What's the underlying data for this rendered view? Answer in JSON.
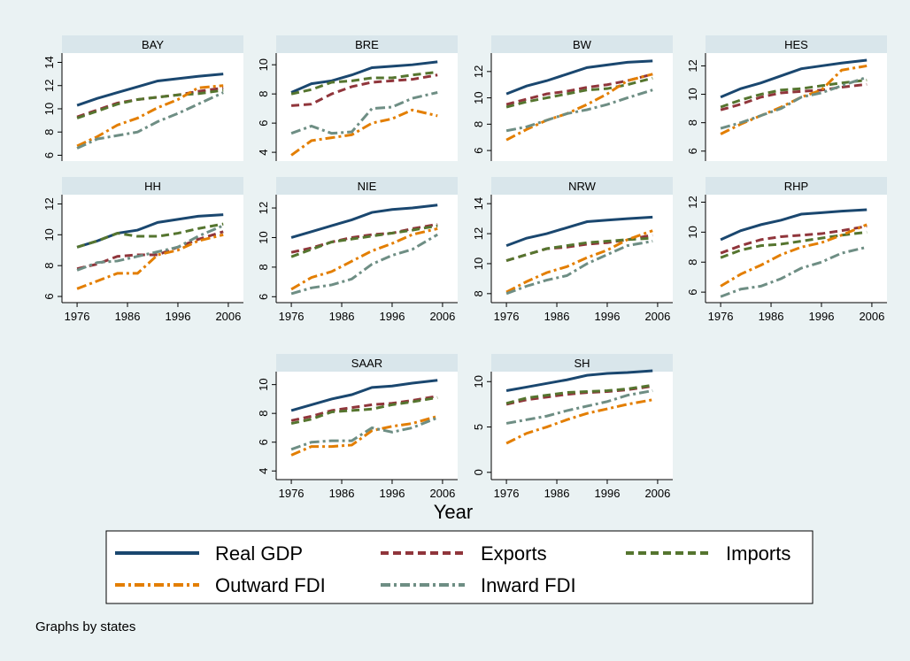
{
  "chart_data": [
    {
      "type": "line",
      "title": "BAY",
      "x": [
        1976,
        1980,
        1984,
        1988,
        1992,
        1996,
        2000,
        2005
      ],
      "xlim": [
        1973,
        2009
      ],
      "ylim": [
        5.5,
        14.8
      ],
      "yticks": [
        6,
        8,
        10,
        12,
        14
      ],
      "series": [
        {
          "values": [
            10.3,
            10.9,
            11.4,
            11.9,
            12.4,
            12.6,
            12.8,
            13.0
          ]
        },
        {
          "values": [
            9.3,
            9.9,
            10.5,
            10.8,
            11.0,
            11.2,
            11.5,
            11.8
          ]
        },
        {
          "values": [
            9.2,
            9.8,
            10.4,
            10.8,
            11.0,
            11.2,
            11.3,
            11.6
          ]
        },
        {
          "values": [
            6.8,
            7.6,
            8.6,
            9.2,
            10.1,
            10.8,
            11.8,
            12.0
          ]
        },
        {
          "values": [
            6.6,
            7.4,
            7.7,
            8.0,
            8.9,
            9.6,
            10.4,
            11.4
          ]
        }
      ]
    },
    {
      "type": "line",
      "title": "BRE",
      "x": [
        1976,
        1980,
        1984,
        1988,
        1992,
        1996,
        2000,
        2005
      ],
      "xlim": [
        1973,
        2009
      ],
      "ylim": [
        3.4,
        10.8
      ],
      "yticks": [
        4,
        6,
        8,
        10
      ],
      "series": [
        {
          "values": [
            8.1,
            8.7,
            8.9,
            9.3,
            9.8,
            9.9,
            10.0,
            10.2
          ]
        },
        {
          "values": [
            7.2,
            7.3,
            8.0,
            8.5,
            8.8,
            8.9,
            9.0,
            9.3
          ]
        },
        {
          "values": [
            8.0,
            8.3,
            8.8,
            8.9,
            9.1,
            9.1,
            9.3,
            9.5
          ]
        },
        {
          "values": [
            3.8,
            4.8,
            5.0,
            5.2,
            6.0,
            6.3,
            6.9,
            6.5
          ]
        },
        {
          "values": [
            5.3,
            5.8,
            5.3,
            5.4,
            7.0,
            7.1,
            7.7,
            8.1
          ]
        }
      ]
    },
    {
      "type": "line",
      "title": "BW",
      "x": [
        1976,
        1980,
        1984,
        1988,
        1992,
        1996,
        2000,
        2005
      ],
      "xlim": [
        1973,
        2009
      ],
      "ylim": [
        5.2,
        13.4
      ],
      "yticks": [
        6,
        8,
        10,
        12
      ],
      "series": [
        {
          "values": [
            10.3,
            10.9,
            11.3,
            11.8,
            12.3,
            12.5,
            12.7,
            12.8
          ]
        },
        {
          "values": [
            9.5,
            9.9,
            10.3,
            10.5,
            10.8,
            11.0,
            11.3,
            11.8
          ]
        },
        {
          "values": [
            9.3,
            9.7,
            10.0,
            10.3,
            10.6,
            10.7,
            11.0,
            11.5
          ]
        },
        {
          "values": [
            6.8,
            7.6,
            8.3,
            8.8,
            9.5,
            10.3,
            11.3,
            11.8
          ]
        },
        {
          "values": [
            7.5,
            7.8,
            8.3,
            8.8,
            9.1,
            9.5,
            10.0,
            10.6
          ]
        }
      ]
    },
    {
      "type": "line",
      "title": "HES",
      "x": [
        1976,
        1980,
        1984,
        1988,
        1992,
        1996,
        2000,
        2005
      ],
      "xlim": [
        1973,
        2009
      ],
      "ylim": [
        5.3,
        12.9
      ],
      "yticks": [
        6,
        8,
        10,
        12
      ],
      "series": [
        {
          "values": [
            9.8,
            10.4,
            10.8,
            11.3,
            11.8,
            12.0,
            12.2,
            12.4
          ]
        },
        {
          "values": [
            8.9,
            9.3,
            9.8,
            10.1,
            10.2,
            10.3,
            10.5,
            10.7
          ]
        },
        {
          "values": [
            9.1,
            9.6,
            10.0,
            10.3,
            10.4,
            10.6,
            10.8,
            11.0
          ]
        },
        {
          "values": [
            7.2,
            7.9,
            8.5,
            9.1,
            9.8,
            10.3,
            11.7,
            12.0
          ]
        },
        {
          "values": [
            7.6,
            8.0,
            8.5,
            9.0,
            9.8,
            10.1,
            10.6,
            11.2
          ]
        }
      ]
    },
    {
      "type": "line",
      "title": "HH",
      "x": [
        1976,
        1980,
        1984,
        1988,
        1992,
        1996,
        2000,
        2005
      ],
      "xlim": [
        1973,
        2009
      ],
      "xticks": [
        1976,
        1986,
        1996,
        2006
      ],
      "ylim": [
        5.6,
        12.6
      ],
      "yticks": [
        6,
        8,
        10,
        12
      ],
      "series": [
        {
          "values": [
            9.2,
            9.6,
            10.1,
            10.3,
            10.8,
            11.0,
            11.2,
            11.3
          ]
        },
        {
          "values": [
            7.8,
            8.1,
            8.6,
            8.7,
            8.7,
            9.2,
            9.7,
            10.2
          ]
        },
        {
          "values": [
            9.2,
            9.6,
            10.1,
            9.9,
            9.9,
            10.1,
            10.4,
            10.7
          ]
        },
        {
          "values": [
            6.5,
            7.0,
            7.5,
            7.5,
            8.7,
            9.0,
            9.6,
            10.0
          ]
        },
        {
          "values": [
            7.7,
            8.2,
            8.3,
            8.6,
            8.9,
            9.2,
            9.9,
            10.6
          ]
        }
      ]
    },
    {
      "type": "line",
      "title": "NIE",
      "x": [
        1976,
        1980,
        1984,
        1988,
        1992,
        1996,
        2000,
        2005
      ],
      "xlim": [
        1973,
        2009
      ],
      "xticks": [
        1976,
        1986,
        1996,
        2006
      ],
      "ylim": [
        5.6,
        12.9
      ],
      "yticks": [
        6,
        8,
        10,
        12
      ],
      "series": [
        {
          "values": [
            10.0,
            10.4,
            10.8,
            11.2,
            11.7,
            11.9,
            12.0,
            12.2
          ]
        },
        {
          "values": [
            9.0,
            9.3,
            9.7,
            10.0,
            10.2,
            10.3,
            10.6,
            10.9
          ]
        },
        {
          "values": [
            8.7,
            9.2,
            9.7,
            9.9,
            10.1,
            10.3,
            10.5,
            10.8
          ]
        },
        {
          "values": [
            6.5,
            7.3,
            7.7,
            8.4,
            9.1,
            9.6,
            10.2,
            10.6
          ]
        },
        {
          "values": [
            6.2,
            6.6,
            6.8,
            7.2,
            8.2,
            8.8,
            9.2,
            10.2
          ]
        }
      ]
    },
    {
      "type": "line",
      "title": "NRW",
      "x": [
        1976,
        1980,
        1984,
        1988,
        1992,
        1996,
        2000,
        2005
      ],
      "xlim": [
        1973,
        2009
      ],
      "xticks": [
        1976,
        1986,
        1996,
        2006
      ],
      "ylim": [
        7.4,
        14.6
      ],
      "yticks": [
        8,
        10,
        12,
        14
      ],
      "series": [
        {
          "values": [
            11.2,
            11.7,
            12.0,
            12.4,
            12.8,
            12.9,
            13.0,
            13.1
          ]
        },
        {
          "values": [
            10.2,
            10.6,
            11.0,
            11.1,
            11.3,
            11.4,
            11.6,
            11.9
          ]
        },
        {
          "values": [
            10.2,
            10.6,
            11.0,
            11.2,
            11.4,
            11.5,
            11.6,
            11.7
          ]
        },
        {
          "values": [
            8.1,
            8.8,
            9.4,
            9.8,
            10.4,
            10.9,
            11.6,
            12.2
          ]
        },
        {
          "values": [
            8.0,
            8.5,
            8.9,
            9.2,
            10.0,
            10.6,
            11.2,
            11.5
          ]
        }
      ]
    },
    {
      "type": "line",
      "title": "RHP",
      "x": [
        1976,
        1980,
        1984,
        1988,
        1992,
        1996,
        2000,
        2005
      ],
      "xlim": [
        1973,
        2009
      ],
      "xticks": [
        1976,
        1986,
        1996,
        2006
      ],
      "ylim": [
        5.3,
        12.5
      ],
      "yticks": [
        6,
        8,
        10,
        12
      ],
      "series": [
        {
          "values": [
            9.5,
            10.1,
            10.5,
            10.8,
            11.2,
            11.3,
            11.4,
            11.5
          ]
        },
        {
          "values": [
            8.6,
            9.1,
            9.5,
            9.7,
            9.8,
            9.9,
            10.1,
            10.4
          ]
        },
        {
          "values": [
            8.3,
            8.8,
            9.1,
            9.2,
            9.4,
            9.6,
            9.8,
            10.0
          ]
        },
        {
          "values": [
            6.4,
            7.2,
            7.8,
            8.5,
            9.0,
            9.3,
            9.8,
            10.5
          ]
        },
        {
          "values": [
            5.7,
            6.2,
            6.4,
            6.9,
            7.6,
            8.0,
            8.6,
            9.0
          ]
        }
      ]
    },
    {
      "type": "line",
      "title": "SAAR",
      "x": [
        1976,
        1980,
        1984,
        1988,
        1992,
        1996,
        2000,
        2005
      ],
      "xlim": [
        1973,
        2009
      ],
      "xticks": [
        1976,
        1986,
        1996,
        2006
      ],
      "ylim": [
        3.4,
        10.9
      ],
      "yticks": [
        4,
        6,
        8,
        10
      ],
      "series": [
        {
          "values": [
            8.2,
            8.6,
            9.0,
            9.3,
            9.8,
            9.9,
            10.1,
            10.3
          ]
        },
        {
          "values": [
            7.5,
            7.8,
            8.2,
            8.4,
            8.6,
            8.7,
            8.9,
            9.2
          ]
        },
        {
          "values": [
            7.3,
            7.6,
            8.1,
            8.2,
            8.3,
            8.6,
            8.8,
            9.1
          ]
        },
        {
          "values": [
            5.1,
            5.7,
            5.7,
            5.8,
            6.8,
            7.1,
            7.3,
            7.8
          ]
        },
        {
          "values": [
            5.5,
            6.0,
            6.1,
            6.1,
            7.0,
            6.7,
            7.0,
            7.7
          ]
        }
      ]
    },
    {
      "type": "line",
      "title": "SH",
      "x": [
        1976,
        1980,
        1984,
        1988,
        1992,
        1996,
        2000,
        2005
      ],
      "xlim": [
        1973,
        2009
      ],
      "xticks": [
        1976,
        1986,
        1996,
        2006
      ],
      "ylim": [
        -0.8,
        11.1
      ],
      "yticks": [
        0,
        5,
        10
      ],
      "series": [
        {
          "values": [
            9.0,
            9.4,
            9.8,
            10.2,
            10.7,
            10.9,
            11.0,
            11.2
          ]
        },
        {
          "values": [
            7.5,
            8.0,
            8.3,
            8.6,
            8.8,
            8.9,
            9.1,
            9.5
          ]
        },
        {
          "values": [
            7.6,
            8.2,
            8.5,
            8.8,
            8.9,
            9.0,
            9.2,
            9.6
          ]
        },
        {
          "values": [
            3.2,
            4.3,
            5.0,
            5.8,
            6.5,
            7.0,
            7.5,
            8.0
          ]
        },
        {
          "values": [
            5.4,
            5.8,
            6.2,
            6.8,
            7.3,
            7.8,
            8.5,
            9.0
          ]
        }
      ]
    }
  ],
  "xlabel": "Year",
  "legend": [
    {
      "name": "Real GDP",
      "color": "#1a476f",
      "dash": "none"
    },
    {
      "name": "Exports",
      "color": "#90353b",
      "dash": "9,5"
    },
    {
      "name": "Imports",
      "color": "#55752f",
      "dash": "9,5"
    },
    {
      "name": "Outward FDI",
      "color": "#e37e00",
      "dash": "11,4,3,4"
    },
    {
      "name": "Inward FDI",
      "color": "#6e8e84",
      "dash": "11,4,3,4"
    }
  ],
  "note": "Graphs by states"
}
